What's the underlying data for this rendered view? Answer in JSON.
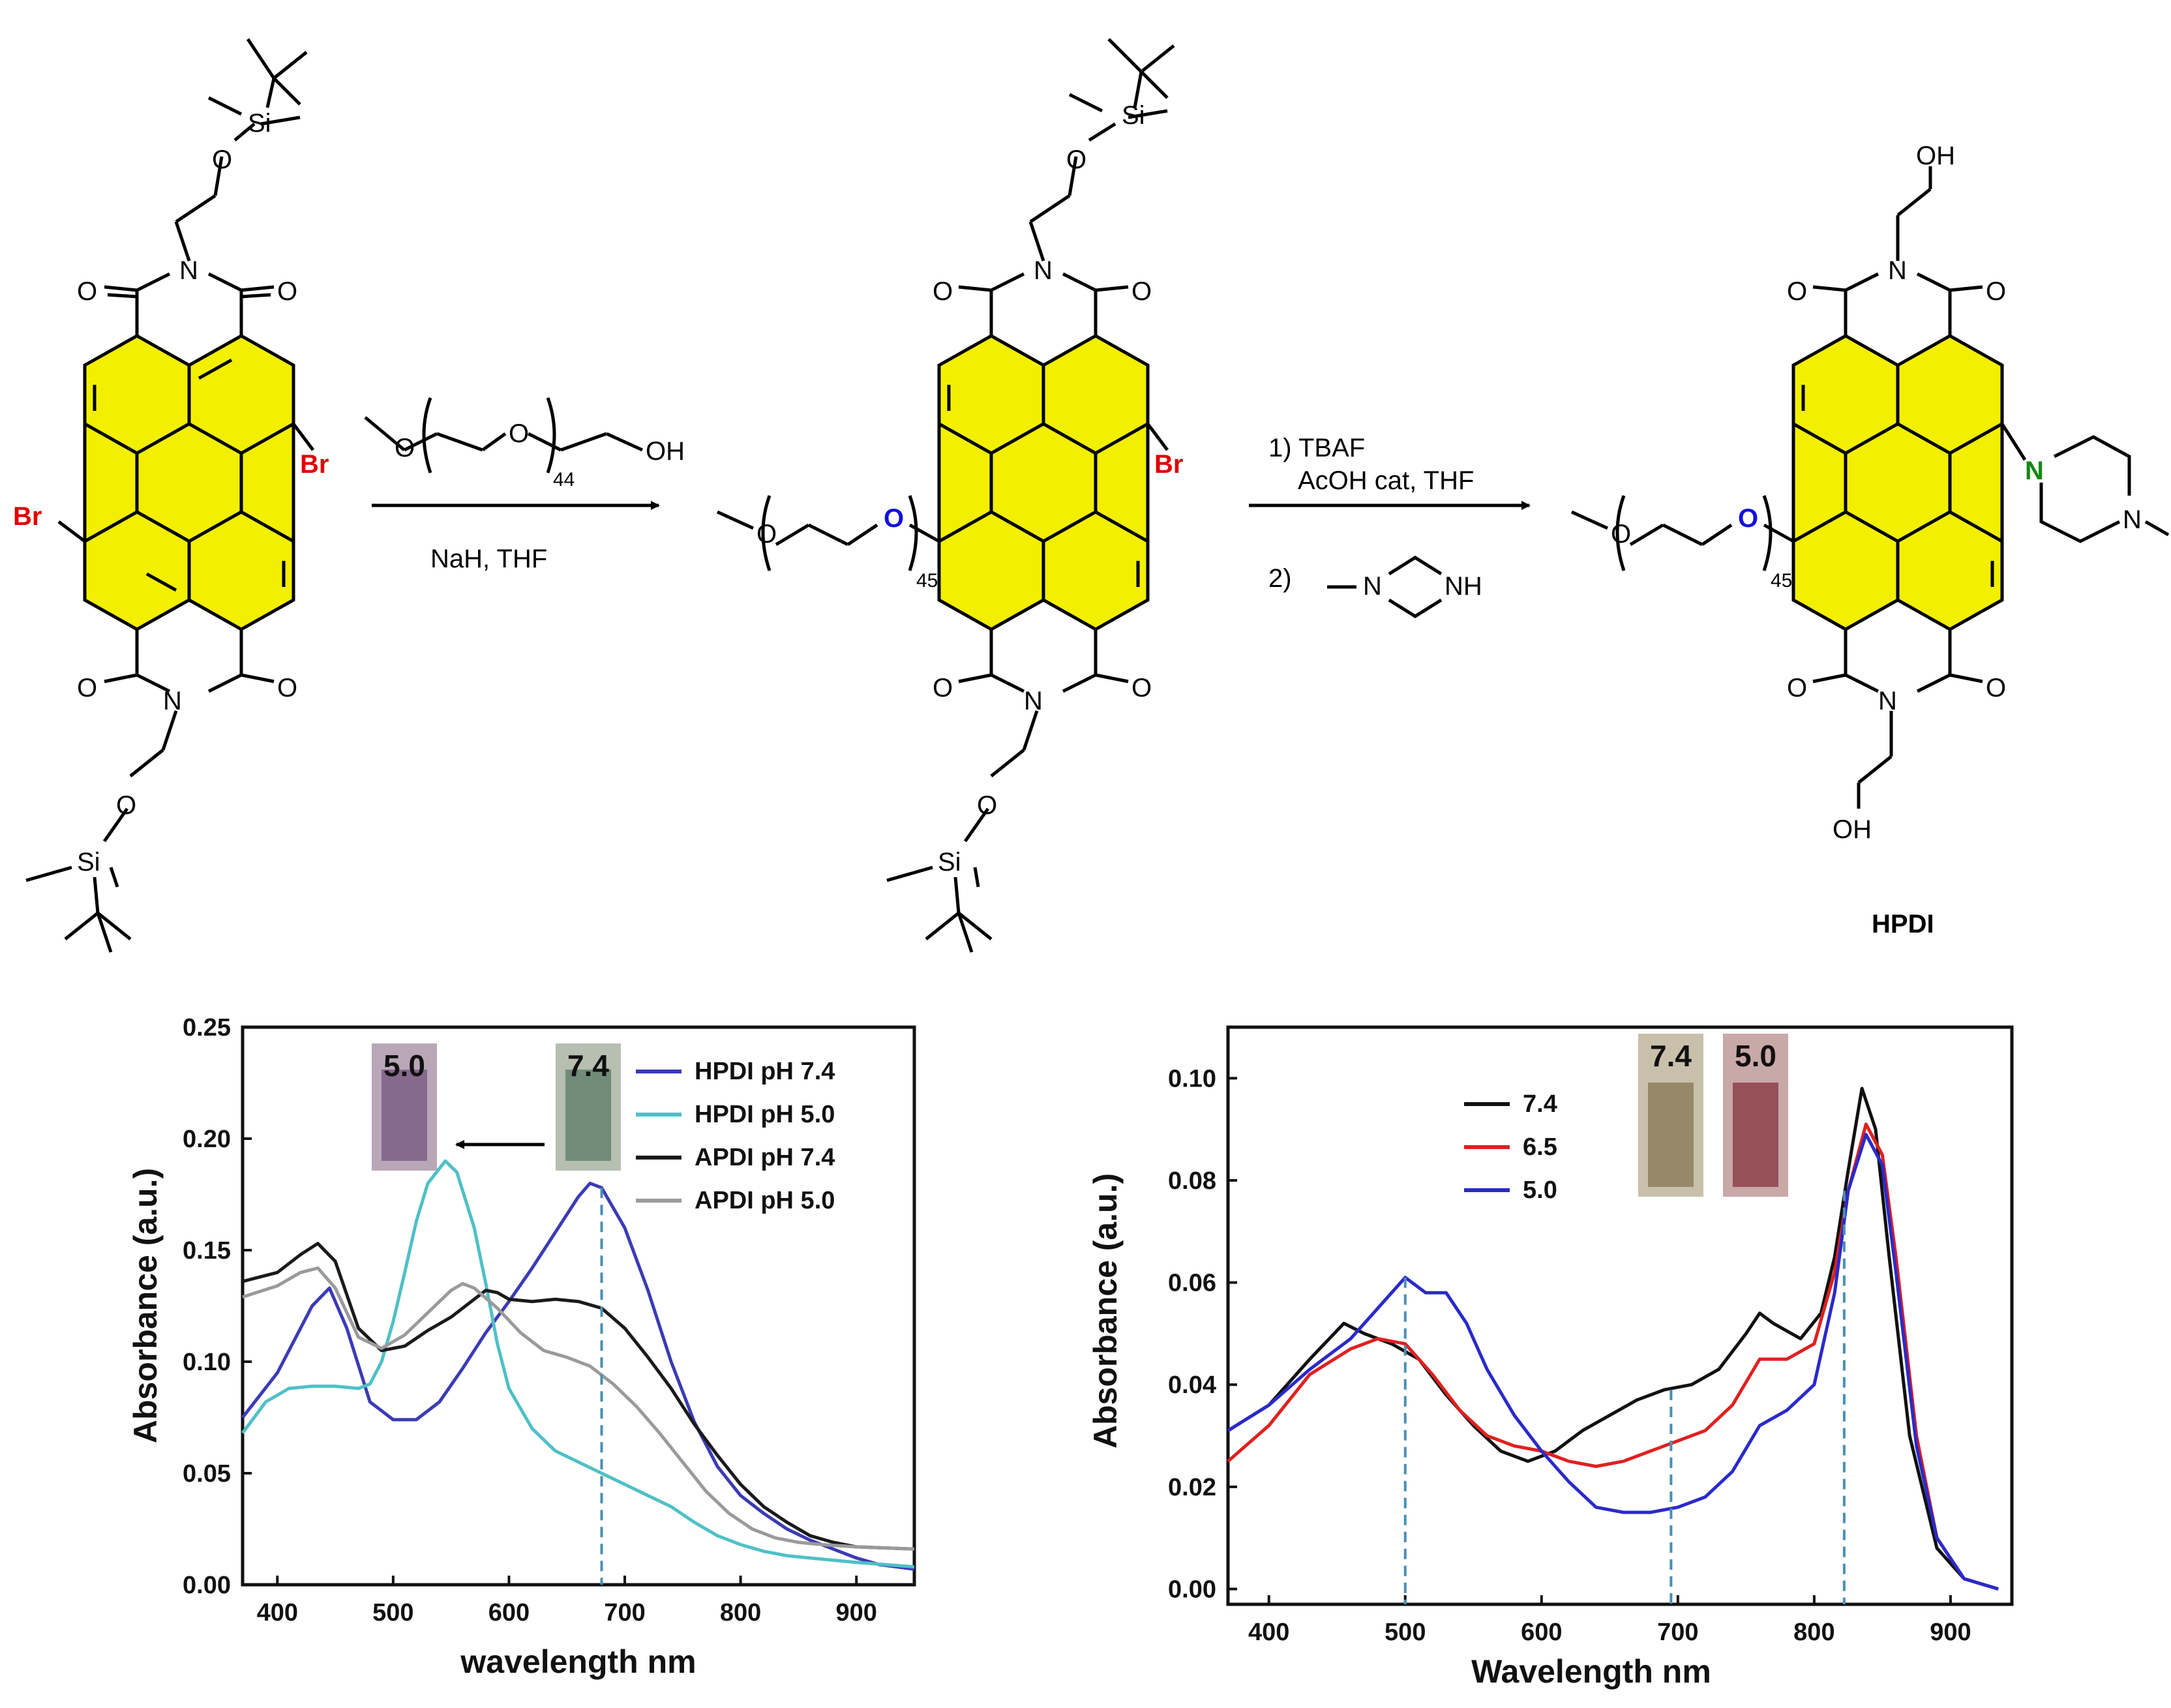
{
  "scheme": {
    "sm": {
      "silyl_top": "Si",
      "silyl_bottom": "Si",
      "ether_o_top": "O",
      "ether_o_bottom": "O",
      "imide_n": "N",
      "carbonyl_o": "O",
      "bromo": "Br"
    },
    "step1": {
      "reagent_ome": "O",
      "reagent_o": "O",
      "reagent_oh": "OH",
      "reagent_n": "44",
      "conditions": "NaH, THF"
    },
    "intermediate": {
      "peg_o": "O",
      "peg_n": "45",
      "bromo": "Br",
      "silyl": "Si",
      "ether_o": "O",
      "imide_n": "N",
      "carbonyl_o": "O"
    },
    "step2": {
      "line1": "1) TBAF",
      "line2": "AcOH cat, THF",
      "line3": "2)",
      "amine_n1": "N",
      "amine_nh": "NH"
    },
    "product": {
      "oh_top": "OH",
      "oh_bottom": "OH",
      "imide_n": "N",
      "carbonyl_o": "O",
      "peg_o": "O",
      "peg_n": "45",
      "pip_n1": "N",
      "pip_n2": "N",
      "name": "HPDI"
    }
  },
  "chart_data": [
    {
      "type": "line",
      "xlabel": "wavelength nm",
      "ylabel": "Absorbance (a.u.)",
      "xlim": [
        370,
        950
      ],
      "ylim": [
        0.0,
        0.25
      ],
      "xticks": [
        "400",
        "500",
        "600",
        "700",
        "800",
        "900"
      ],
      "yticks": [
        "0.00",
        "0.05",
        "0.10",
        "0.15",
        "0.20",
        "0.25"
      ],
      "legend_position": "top-right",
      "insets": [
        "5.0",
        "7.4"
      ],
      "annotations": [
        "dashed line at 680 nm",
        "arrow from pH 7.4 vial to pH 5.0 vial"
      ],
      "series": [
        {
          "name": "HPDI pH 7.4",
          "color": "#3b3bb5",
          "x": [
            370,
            400,
            430,
            445,
            460,
            480,
            500,
            520,
            540,
            560,
            580,
            600,
            620,
            640,
            660,
            670,
            680,
            700,
            720,
            740,
            760,
            780,
            800,
            820,
            840,
            860,
            880,
            900,
            920,
            950
          ],
          "y": [
            0.075,
            0.095,
            0.125,
            0.133,
            0.115,
            0.082,
            0.074,
            0.074,
            0.082,
            0.097,
            0.113,
            0.127,
            0.142,
            0.158,
            0.174,
            0.18,
            0.178,
            0.16,
            0.132,
            0.1,
            0.073,
            0.053,
            0.04,
            0.032,
            0.025,
            0.02,
            0.016,
            0.012,
            0.009,
            0.007
          ]
        },
        {
          "name": "HPDI pH 5.0",
          "color": "#4fc0c6",
          "x": [
            370,
            390,
            410,
            430,
            450,
            470,
            480,
            490,
            500,
            510,
            520,
            530,
            545,
            555,
            570,
            580,
            590,
            600,
            620,
            640,
            660,
            680,
            700,
            720,
            740,
            760,
            780,
            800,
            820,
            840,
            860,
            880,
            900,
            950
          ],
          "y": [
            0.068,
            0.082,
            0.088,
            0.089,
            0.089,
            0.088,
            0.09,
            0.1,
            0.118,
            0.14,
            0.163,
            0.18,
            0.19,
            0.185,
            0.16,
            0.135,
            0.108,
            0.088,
            0.07,
            0.06,
            0.055,
            0.05,
            0.045,
            0.04,
            0.035,
            0.028,
            0.022,
            0.018,
            0.015,
            0.013,
            0.012,
            0.011,
            0.01,
            0.008
          ]
        },
        {
          "name": "APDI pH 7.4",
          "color": "#1a1a1a",
          "x": [
            370,
            400,
            420,
            435,
            450,
            470,
            490,
            510,
            530,
            550,
            570,
            580,
            590,
            600,
            620,
            640,
            660,
            680,
            700,
            720,
            740,
            760,
            780,
            800,
            820,
            840,
            860,
            880,
            900,
            950
          ],
          "y": [
            0.136,
            0.14,
            0.148,
            0.153,
            0.145,
            0.115,
            0.105,
            0.107,
            0.114,
            0.12,
            0.128,
            0.132,
            0.131,
            0.128,
            0.127,
            0.128,
            0.127,
            0.124,
            0.115,
            0.102,
            0.088,
            0.072,
            0.058,
            0.045,
            0.035,
            0.028,
            0.022,
            0.019,
            0.017,
            0.016
          ]
        },
        {
          "name": "APDI pH 5.0",
          "color": "#9a9a9a",
          "x": [
            370,
            400,
            420,
            435,
            450,
            470,
            490,
            510,
            530,
            550,
            560,
            570,
            590,
            610,
            630,
            650,
            670,
            690,
            710,
            730,
            750,
            770,
            790,
            810,
            830,
            850,
            870,
            900,
            950
          ],
          "y": [
            0.129,
            0.134,
            0.14,
            0.142,
            0.133,
            0.111,
            0.106,
            0.112,
            0.122,
            0.132,
            0.135,
            0.133,
            0.124,
            0.113,
            0.105,
            0.102,
            0.098,
            0.09,
            0.08,
            0.068,
            0.055,
            0.042,
            0.032,
            0.025,
            0.021,
            0.019,
            0.018,
            0.017,
            0.016
          ]
        }
      ]
    },
    {
      "type": "line",
      "xlabel": "Wavelength nm",
      "ylabel": "Absorbance (a.u.)",
      "xlim": [
        370,
        945
      ],
      "ylim": [
        -0.003,
        0.11
      ],
      "xticks": [
        "400",
        "500",
        "600",
        "700",
        "800",
        "900"
      ],
      "yticks": [
        "0.00",
        "0.02",
        "0.04",
        "0.06",
        "0.08",
        "0.10"
      ],
      "legend_position": "top-left",
      "insets": [
        "7.4",
        "5.0"
      ],
      "annotations": [
        "dashed lines at 500, 695, 822 nm"
      ],
      "series": [
        {
          "name": "7.4",
          "color": "#111111",
          "x": [
            370,
            400,
            430,
            455,
            470,
            490,
            510,
            530,
            550,
            570,
            590,
            610,
            630,
            650,
            670,
            690,
            710,
            730,
            750,
            760,
            770,
            790,
            805,
            815,
            825,
            835,
            845,
            855,
            870,
            890,
            910,
            935
          ],
          "y": [
            0.031,
            0.036,
            0.045,
            0.052,
            0.05,
            0.048,
            0.045,
            0.038,
            0.032,
            0.027,
            0.025,
            0.027,
            0.031,
            0.034,
            0.037,
            0.039,
            0.04,
            0.043,
            0.05,
            0.054,
            0.052,
            0.049,
            0.054,
            0.065,
            0.082,
            0.098,
            0.09,
            0.065,
            0.03,
            0.008,
            0.002,
            0.0
          ]
        },
        {
          "name": "6.5",
          "color": "#e02020",
          "x": [
            370,
            400,
            430,
            460,
            480,
            500,
            520,
            540,
            560,
            580,
            600,
            620,
            640,
            660,
            680,
            700,
            720,
            740,
            760,
            780,
            800,
            815,
            825,
            838,
            850,
            860,
            875,
            890,
            910,
            935
          ],
          "y": [
            0.025,
            0.032,
            0.042,
            0.047,
            0.049,
            0.048,
            0.042,
            0.035,
            0.03,
            0.028,
            0.027,
            0.025,
            0.024,
            0.025,
            0.027,
            0.029,
            0.031,
            0.036,
            0.045,
            0.045,
            0.048,
            0.062,
            0.078,
            0.091,
            0.085,
            0.065,
            0.03,
            0.01,
            0.002,
            0.0
          ]
        },
        {
          "name": "5.0",
          "color": "#2a2aca",
          "x": [
            370,
            400,
            430,
            460,
            480,
            500,
            515,
            530,
            545,
            560,
            580,
            600,
            620,
            640,
            660,
            680,
            700,
            720,
            740,
            760,
            780,
            800,
            815,
            825,
            838,
            850,
            860,
            875,
            890,
            910,
            935
          ],
          "y": [
            0.031,
            0.036,
            0.043,
            0.049,
            0.055,
            0.061,
            0.058,
            0.058,
            0.052,
            0.043,
            0.034,
            0.027,
            0.021,
            0.016,
            0.015,
            0.015,
            0.016,
            0.018,
            0.023,
            0.032,
            0.035,
            0.04,
            0.058,
            0.078,
            0.089,
            0.083,
            0.062,
            0.028,
            0.01,
            0.002,
            0.0
          ]
        }
      ]
    }
  ]
}
